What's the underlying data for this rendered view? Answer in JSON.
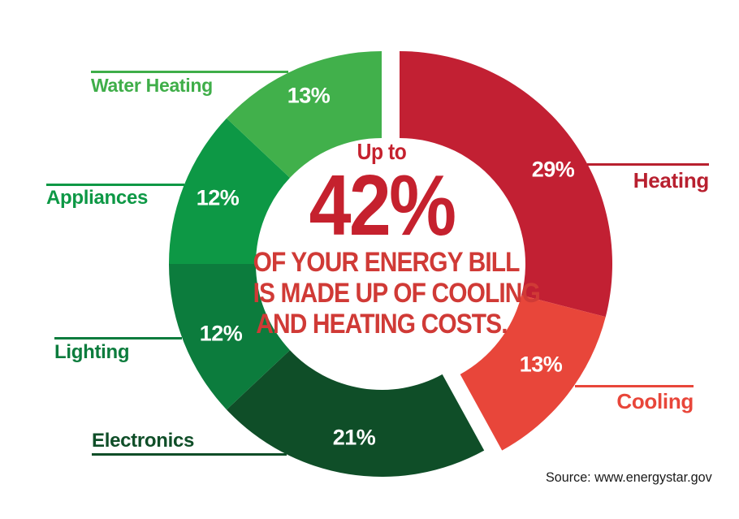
{
  "chart_data": {
    "type": "pie",
    "subtype": "donut",
    "direction": "clockwise",
    "start_angle_deg": 0,
    "categories": [
      "Heating",
      "Cooling",
      "Electronics",
      "Lighting",
      "Appliances",
      "Water Heating"
    ],
    "values": [
      29,
      13,
      21,
      12,
      12,
      13
    ],
    "segments": [
      {
        "label": "Heating",
        "value": 29,
        "value_label": "29%",
        "color": "#C22033",
        "label_color": "#B8202F",
        "exploded": true
      },
      {
        "label": "Cooling",
        "value": 13,
        "value_label": "13%",
        "color": "#E8463A",
        "label_color": "#E8463A",
        "exploded": true
      },
      {
        "label": "Electronics",
        "value": 21,
        "value_label": "21%",
        "color": "#0F4E28",
        "label_color": "#0F4E28",
        "exploded": false
      },
      {
        "label": "Lighting",
        "value": 12,
        "value_label": "12%",
        "color": "#0C7C3D",
        "label_color": "#0C7C3D",
        "exploded": false
      },
      {
        "label": "Appliances",
        "value": 12,
        "value_label": "12%",
        "color": "#0D9845",
        "label_color": "#0D9845",
        "exploded": false
      },
      {
        "label": "Water Heating",
        "value": 13,
        "value_label": "13%",
        "color": "#41B04B",
        "label_color": "#3FAE49",
        "exploded": false
      }
    ],
    "value_label_color": "#FFFFFF",
    "legend_position": "callout-labels",
    "center_text": {
      "line1": "Up to",
      "line2": "42%",
      "line3": "OF YOUR ENERGY BILL",
      "line4": "IS MADE UP OF COOLING",
      "line5": "AND HEATING COSTS.",
      "headline_color": "#C5212E",
      "body_color": "#D03A36"
    },
    "source": "Source: www.energystar.gov"
  }
}
